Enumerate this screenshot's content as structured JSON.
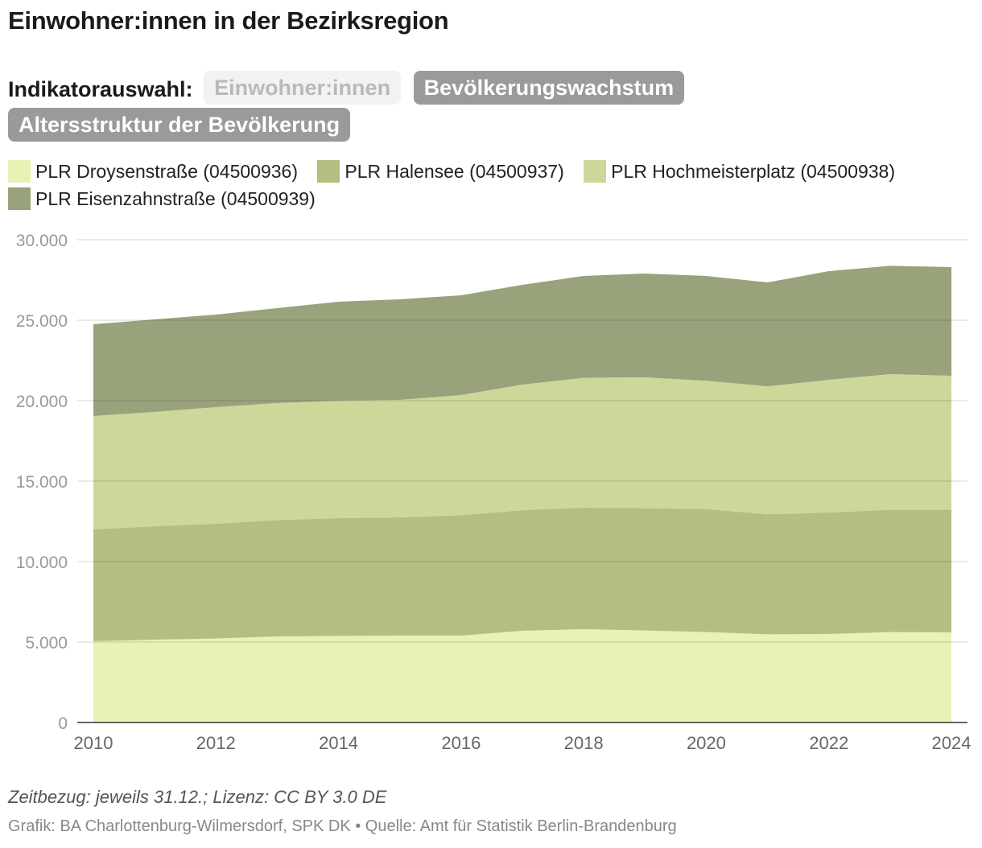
{
  "header": {
    "title": "Einwohner:innen in der Bezirksregion"
  },
  "indicator": {
    "label": "Indikatorauswahl:",
    "buttons": [
      {
        "label": "Einwohner:innen",
        "state": "active"
      },
      {
        "label": "Bevölkerungswachstum",
        "state": "inactive"
      },
      {
        "label": "Altersstruktur der Bevölkerung",
        "state": "inactive"
      }
    ]
  },
  "footer": {
    "note": "Zeitbezug: jeweils 31.12.; Lizenz: CC BY 3.0 DE",
    "source": "Grafik: BA Charlottenburg-Wilmersdorf, SPK DK • Quelle: Amt für Statistik Berlin-Brandenburg"
  },
  "chart_data": {
    "type": "area",
    "stacked": true,
    "title": "Einwohner:innen in der Bezirksregion",
    "xlabel": "",
    "ylabel": "",
    "x": [
      2010,
      2011,
      2012,
      2013,
      2014,
      2015,
      2016,
      2017,
      2018,
      2019,
      2020,
      2021,
      2022,
      2023,
      2024
    ],
    "x_ticks": [
      "2010",
      "2012",
      "2014",
      "2016",
      "2018",
      "2020",
      "2022",
      "2024"
    ],
    "x_tick_values": [
      2010,
      2012,
      2014,
      2016,
      2018,
      2020,
      2022,
      2024
    ],
    "y_ticks": [
      "0",
      "5.000",
      "10.000",
      "15.000",
      "20.000",
      "25.000",
      "30.000"
    ],
    "y_tick_values": [
      0,
      5000,
      10000,
      15000,
      20000,
      25000,
      30000
    ],
    "ylim": [
      0,
      30000
    ],
    "xlim": [
      2010,
      2024
    ],
    "grid": true,
    "legend_position": "top",
    "series": [
      {
        "name": "PLR Droysenstraße (04500936)",
        "color": "#e8f2b4",
        "values": [
          5050,
          5150,
          5220,
          5350,
          5380,
          5400,
          5400,
          5700,
          5800,
          5720,
          5620,
          5480,
          5500,
          5620,
          5600
        ]
      },
      {
        "name": "PLR Halensee (04500937)",
        "color": "#b2bf80",
        "values": [
          6950,
          7050,
          7130,
          7230,
          7320,
          7350,
          7480,
          7500,
          7550,
          7600,
          7650,
          7460,
          7550,
          7600,
          7620
        ]
      },
      {
        "name": "PLR Hochmeisterplatz (04500938)",
        "color": "#cdd79a",
        "values": [
          7050,
          7100,
          7250,
          7270,
          7300,
          7300,
          7470,
          7800,
          8070,
          8130,
          7970,
          7950,
          8250,
          8430,
          8330
        ]
      },
      {
        "name": "PLR Eisenzahnstraße (04500939)",
        "color": "#98a27b",
        "values": [
          5700,
          5750,
          5750,
          5900,
          6150,
          6250,
          6200,
          6200,
          6330,
          6450,
          6510,
          6460,
          6750,
          6730,
          6750
        ]
      }
    ]
  }
}
